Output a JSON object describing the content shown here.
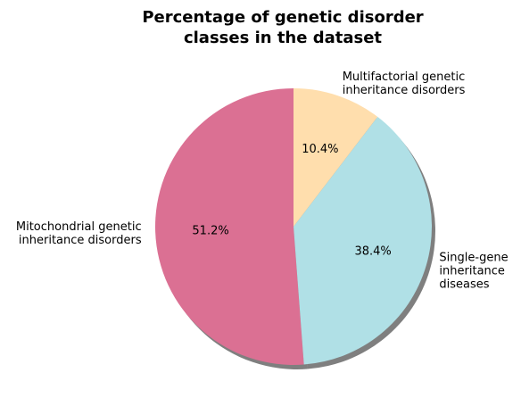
{
  "chart_data": {
    "type": "pie",
    "title": "Percentage of genetic disorder classes in the dataset",
    "title_lines": [
      "Percentage of genetic disorder",
      "classes in the dataset"
    ],
    "start_angle_deg": 90,
    "direction": "counterclockwise",
    "shadow": true,
    "slices": [
      {
        "label": "Mitochondrial genetic inheritance disorders",
        "label_lines": [
          "Mitochondrial genetic",
          "inheritance disorders"
        ],
        "value": 51.2,
        "pct_text": "51.2%",
        "color": "#DB7093"
      },
      {
        "label": "Single-gene inheritance diseases",
        "label_lines": [
          "Single-gene",
          "inheritance",
          "diseases"
        ],
        "value": 38.4,
        "pct_text": "38.4%",
        "color": "#B0E0E6"
      },
      {
        "label": "Multifactorial genetic inheritance disorders",
        "label_lines": [
          "Multifactorial genetic",
          "inheritance disorders"
        ],
        "value": 10.4,
        "pct_text": "10.4%",
        "color": "#FFDEAD"
      }
    ]
  }
}
